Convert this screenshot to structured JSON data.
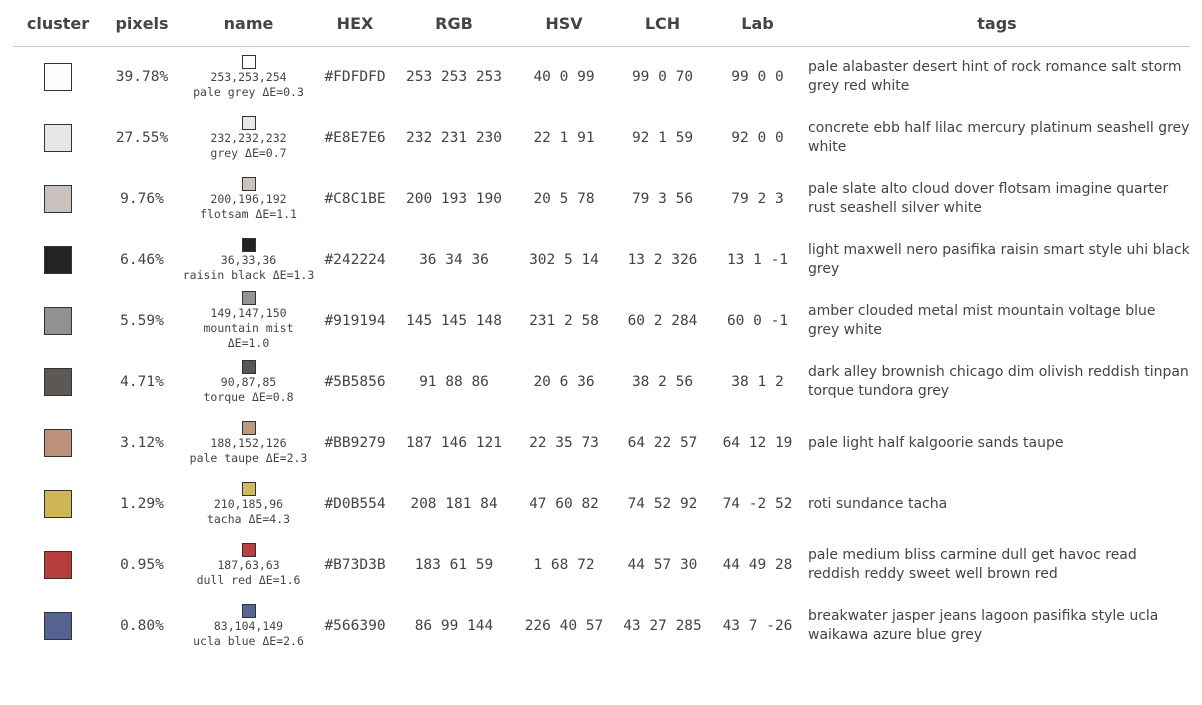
{
  "headers": {
    "cluster": "cluster",
    "pixels": "pixels",
    "name": "name",
    "hex": "HEX",
    "rgb": "RGB",
    "hsv": "HSV",
    "lch": "LCH",
    "lab": "Lab",
    "tags": "tags"
  },
  "rows": [
    {
      "color": "#FDFDFD",
      "named_color": "#FDFDFE",
      "pixels": "39.78%",
      "name_rgb": "253,253,254",
      "name_label": "pale grey ΔE=0.3",
      "hex": "#FDFDFD",
      "rgb": "253 253 253",
      "hsv": "40 0 99",
      "lch": "99 0 70",
      "lab": "99 0 0",
      "tags": "pale alabaster desert hint of rock romance salt storm grey red white"
    },
    {
      "color": "#E8E7E6",
      "named_color": "#E8E8E8",
      "pixels": "27.55%",
      "name_rgb": "232,232,232",
      "name_label": "grey ΔE=0.7",
      "hex": "#E8E7E6",
      "rgb": "232 231 230",
      "hsv": "22 1 91",
      "lch": "92 1 59",
      "lab": "92 0 0",
      "tags": "concrete ebb half lilac mercury platinum seashell grey white"
    },
    {
      "color": "#C8C1BE",
      "named_color": "#C8C4C0",
      "pixels": "9.76%",
      "name_rgb": "200,196,192",
      "name_label": "flotsam ΔE=1.1",
      "hex": "#C8C1BE",
      "rgb": "200 193 190",
      "hsv": "20 5 78",
      "lch": "79 3 56",
      "lab": "79 2 3",
      "tags": "pale slate alto cloud dover flotsam imagine quarter rust seashell silver white"
    },
    {
      "color": "#242224",
      "named_color": "#242124",
      "pixels": "6.46%",
      "name_rgb": "36,33,36",
      "name_label": "raisin black ΔE=1.3",
      "hex": "#242224",
      "rgb": "36 34 36",
      "hsv": "302 5 14",
      "lch": "13 2 326",
      "lab": "13 1 -1",
      "tags": "light maxwell nero pasifika raisin smart style uhi black grey"
    },
    {
      "color": "#919194",
      "named_color": "#959396",
      "pixels": "5.59%",
      "name_rgb": "149,147,150",
      "name_label": "mountain mist ΔE=1.0",
      "hex": "#919194",
      "rgb": "145 145 148",
      "hsv": "231 2 58",
      "lch": "60 2 284",
      "lab": "60 0 -1",
      "tags": "amber clouded metal mist mountain voltage blue grey white"
    },
    {
      "color": "#5B5856",
      "named_color": "#5A5755",
      "pixels": "4.71%",
      "name_rgb": "90,87,85",
      "name_label": "torque ΔE=0.8",
      "hex": "#5B5856",
      "rgb": "91 88 86",
      "hsv": "20 6 36",
      "lch": "38 2 56",
      "lab": "38 1 2",
      "tags": "dark alley brownish chicago dim olivish reddish tinpan torque tundora grey"
    },
    {
      "color": "#BB9279",
      "named_color": "#BC987E",
      "pixels": "3.12%",
      "name_rgb": "188,152,126",
      "name_label": "pale taupe ΔE=2.3",
      "hex": "#BB9279",
      "rgb": "187 146 121",
      "hsv": "22 35 73",
      "lch": "64 22 57",
      "lab": "64 12 19",
      "tags": "pale light half kalgoorie sands taupe"
    },
    {
      "color": "#D0B554",
      "named_color": "#D2B960",
      "pixels": "1.29%",
      "name_rgb": "210,185,96",
      "name_label": "tacha ΔE=4.3",
      "hex": "#D0B554",
      "rgb": "208 181 84",
      "hsv": "47 60 82",
      "lch": "74 52 92",
      "lab": "74 -2 52",
      "tags": "roti sundance tacha"
    },
    {
      "color": "#B73D3B",
      "named_color": "#BB3F3F",
      "pixels": "0.95%",
      "name_rgb": "187,63,63",
      "name_label": "dull red ΔE=1.6",
      "hex": "#B73D3B",
      "rgb": "183 61 59",
      "hsv": "1 68 72",
      "lch": "44 57 30",
      "lab": "44 49 28",
      "tags": "pale medium bliss carmine dull get havoc read reddish reddy sweet well brown red"
    },
    {
      "color": "#566390",
      "named_color": "#536895",
      "pixels": "0.80%",
      "name_rgb": "83,104,149",
      "name_label": "ucla blue ΔE=2.6",
      "hex": "#566390",
      "rgb": "86 99 144",
      "hsv": "226 40 57",
      "lch": "43 27 285",
      "lab": "43 7 -26",
      "tags": "breakwater jasper jeans lagoon pasifika style ucla waikawa azure blue grey"
    }
  ]
}
